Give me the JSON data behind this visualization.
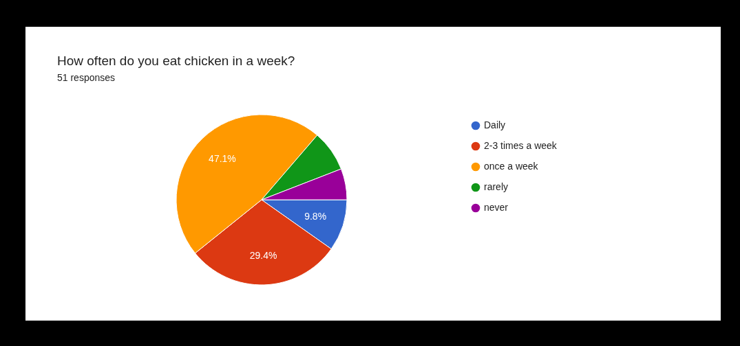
{
  "chart_data": {
    "type": "pie",
    "title": "How often do you eat chicken in a week?",
    "subtitle": "51 responses",
    "categories": [
      "Daily",
      "2-3 times a week",
      "once a week",
      "rarely",
      "never"
    ],
    "values": [
      9.8,
      29.4,
      47.1,
      7.8,
      5.9
    ],
    "colors": [
      "#3366cc",
      "#dc3912",
      "#ff9900",
      "#109618",
      "#990099"
    ],
    "value_labels": [
      "9.8%",
      "29.4%",
      "47.1%",
      null,
      null
    ],
    "legend": "right"
  }
}
